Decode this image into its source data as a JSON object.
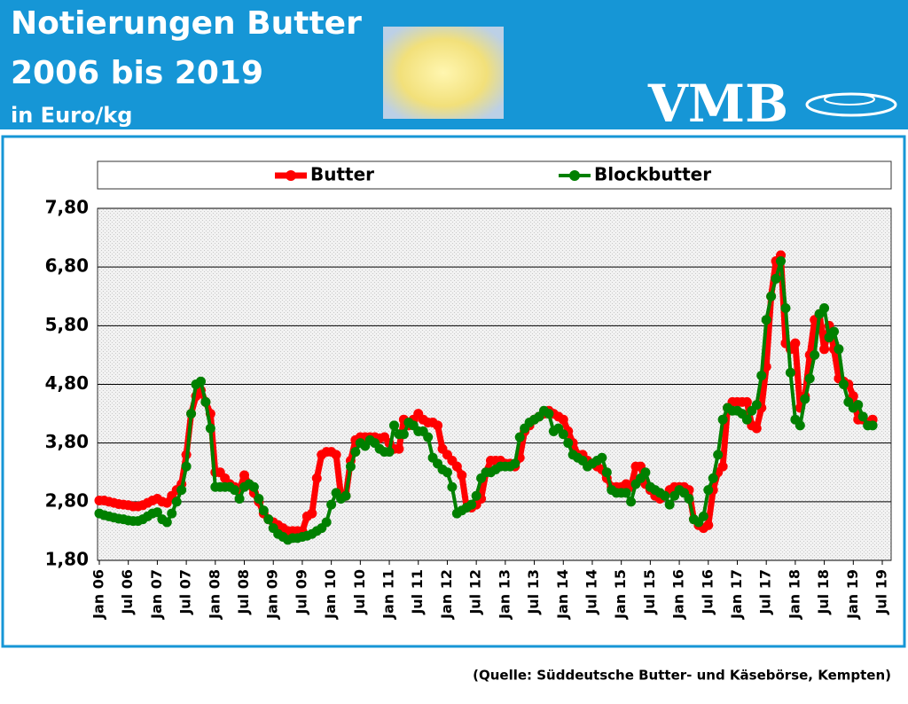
{
  "chart_data": {
    "type": "line",
    "title": "Notierungen Butter",
    "subtitle": "2006 bis 2019",
    "unit": "in Euro/kg",
    "logo": "VMB",
    "source": "(Quelle: Süddeutsche Butter- und Käsebörse, Kempten)",
    "categories": [
      "Jan 06",
      null,
      null,
      null,
      null,
      null,
      "Jul 06",
      null,
      null,
      null,
      null,
      null,
      "Jan 07",
      null,
      null,
      null,
      null,
      null,
      "Jul 07",
      null,
      null,
      null,
      null,
      null,
      "Jan 08",
      null,
      null,
      null,
      null,
      null,
      "Jul 08",
      null,
      null,
      null,
      null,
      null,
      "Jan 09",
      null,
      null,
      null,
      null,
      null,
      "Jul 09",
      null,
      null,
      null,
      null,
      null,
      "Jan 10",
      null,
      null,
      null,
      null,
      null,
      "Jul 10",
      null,
      null,
      null,
      null,
      null,
      "Jan 11",
      null,
      null,
      null,
      null,
      null,
      "Jul 11",
      null,
      null,
      null,
      null,
      null,
      "Jan 12",
      null,
      null,
      null,
      null,
      null,
      "Jul 12",
      null,
      null,
      null,
      null,
      null,
      "Jan 13",
      null,
      null,
      null,
      null,
      null,
      "Jul 13",
      null,
      null,
      null,
      null,
      null,
      "Jan 14",
      null,
      null,
      null,
      null,
      null,
      "Jul 14",
      null,
      null,
      null,
      null,
      null,
      "Jan 15",
      null,
      null,
      null,
      null,
      null,
      "Jul 15",
      null,
      null,
      null,
      null,
      null,
      "Jan 16",
      null,
      null,
      null,
      null,
      null,
      "Jul 16",
      null,
      null,
      null,
      null,
      null,
      "Jan 17",
      null,
      null,
      null,
      null,
      null,
      "Jul 17",
      null,
      null,
      null,
      null,
      null,
      "Jan 18",
      null,
      null,
      null,
      null,
      null,
      "Jul 18",
      null,
      null,
      null,
      null,
      null,
      "Jan 19",
      null,
      null,
      null,
      null,
      null,
      "Jul 19"
    ],
    "series": [
      {
        "name": "Butter",
        "color": "#ff0000",
        "values": [
          2.82,
          2.82,
          2.8,
          2.78,
          2.76,
          2.75,
          2.74,
          2.72,
          2.72,
          2.74,
          2.78,
          2.82,
          2.85,
          2.8,
          2.78,
          2.9,
          3.0,
          3.1,
          3.6,
          4.3,
          4.6,
          4.7,
          4.5,
          4.3,
          3.3,
          3.3,
          3.2,
          3.1,
          3.05,
          3.0,
          3.25,
          3.1,
          2.95,
          2.8,
          2.6,
          2.5,
          2.45,
          2.4,
          2.35,
          2.3,
          2.3,
          2.3,
          2.3,
          2.55,
          2.6,
          3.2,
          3.6,
          3.65,
          3.65,
          3.6,
          2.9,
          2.9,
          3.5,
          3.85,
          3.9,
          3.9,
          3.9,
          3.9,
          3.88,
          3.9,
          3.8,
          3.7,
          3.7,
          4.2,
          4.1,
          4.2,
          4.3,
          4.2,
          4.15,
          4.15,
          4.1,
          3.7,
          3.6,
          3.5,
          3.4,
          3.25,
          2.7,
          2.7,
          2.75,
          2.85,
          3.3,
          3.5,
          3.5,
          3.5,
          3.45,
          3.45,
          3.4,
          3.55,
          4.0,
          4.1,
          4.2,
          4.25,
          4.3,
          4.35,
          4.3,
          4.25,
          4.2,
          4.0,
          3.8,
          3.6,
          3.6,
          3.5,
          3.45,
          3.4,
          3.35,
          3.2,
          3.05,
          3.05,
          3.05,
          3.1,
          3.05,
          3.4,
          3.4,
          3.1,
          3.0,
          2.9,
          2.85,
          2.9,
          3.0,
          3.05,
          3.05,
          3.05,
          3.0,
          2.5,
          2.4,
          2.35,
          2.4,
          3.0,
          3.3,
          3.4,
          4.4,
          4.5,
          4.5,
          4.5,
          4.5,
          4.1,
          4.05,
          4.4,
          5.1,
          6.3,
          6.9,
          7.0,
          5.5,
          5.4,
          5.5,
          4.4,
          4.6,
          5.3,
          5.9,
          6.0,
          5.4,
          5.8,
          5.4,
          4.9,
          4.85,
          4.8,
          4.6,
          4.2,
          4.2,
          4.15,
          4.2,
          null,
          null
        ]
      },
      {
        "name": "Blockbutter",
        "color": "#008000",
        "values": [
          2.6,
          2.57,
          2.55,
          2.53,
          2.51,
          2.5,
          2.48,
          2.47,
          2.47,
          2.5,
          2.55,
          2.6,
          2.62,
          2.5,
          2.45,
          2.6,
          2.8,
          3.0,
          3.4,
          4.3,
          4.8,
          4.85,
          4.5,
          4.05,
          3.05,
          3.05,
          3.05,
          3.05,
          3.0,
          2.85,
          3.05,
          3.1,
          3.05,
          2.85,
          2.65,
          2.5,
          2.35,
          2.25,
          2.2,
          2.15,
          2.18,
          2.18,
          2.2,
          2.22,
          2.25,
          2.3,
          2.35,
          2.45,
          2.75,
          2.95,
          2.85,
          2.9,
          3.4,
          3.65,
          3.8,
          3.75,
          3.85,
          3.8,
          3.7,
          3.65,
          3.65,
          4.1,
          3.95,
          3.95,
          4.15,
          4.1,
          4.0,
          4.0,
          3.9,
          3.55,
          3.45,
          3.35,
          3.3,
          3.05,
          2.6,
          2.65,
          2.7,
          2.75,
          2.9,
          3.2,
          3.3,
          3.3,
          3.35,
          3.4,
          3.4,
          3.4,
          3.45,
          3.9,
          4.05,
          4.15,
          4.2,
          4.25,
          4.35,
          4.3,
          4.0,
          4.05,
          3.95,
          3.8,
          3.6,
          3.55,
          3.5,
          3.4,
          3.45,
          3.5,
          3.55,
          3.3,
          3.0,
          2.95,
          2.95,
          2.95,
          2.8,
          3.1,
          3.2,
          3.3,
          3.05,
          3.0,
          2.95,
          2.9,
          2.75,
          2.9,
          3.0,
          2.95,
          2.85,
          2.5,
          2.45,
          2.55,
          3.0,
          3.2,
          3.6,
          4.2,
          4.4,
          4.35,
          4.35,
          4.3,
          4.2,
          4.35,
          4.45,
          4.95,
          5.9,
          6.3,
          6.6,
          6.9,
          6.1,
          5.0,
          4.2,
          4.1,
          4.55,
          4.9,
          5.3,
          6.0,
          6.1,
          5.6,
          5.7,
          5.4,
          4.8,
          4.5,
          4.4,
          4.45,
          4.25,
          4.1,
          4.1,
          null,
          null
        ]
      }
    ],
    "ylim": [
      1.8,
      7.8
    ],
    "yticks": [
      {
        "value": 1.8,
        "label": "1,80"
      },
      {
        "value": 2.8,
        "label": "2,80"
      },
      {
        "value": 3.8,
        "label": "3,80"
      },
      {
        "value": 4.8,
        "label": "4,80"
      },
      {
        "value": 5.8,
        "label": "5,80"
      },
      {
        "value": 6.8,
        "label": "6,80"
      },
      {
        "value": 7.8,
        "label": "7,80"
      }
    ],
    "grid": true,
    "legend": "top"
  }
}
